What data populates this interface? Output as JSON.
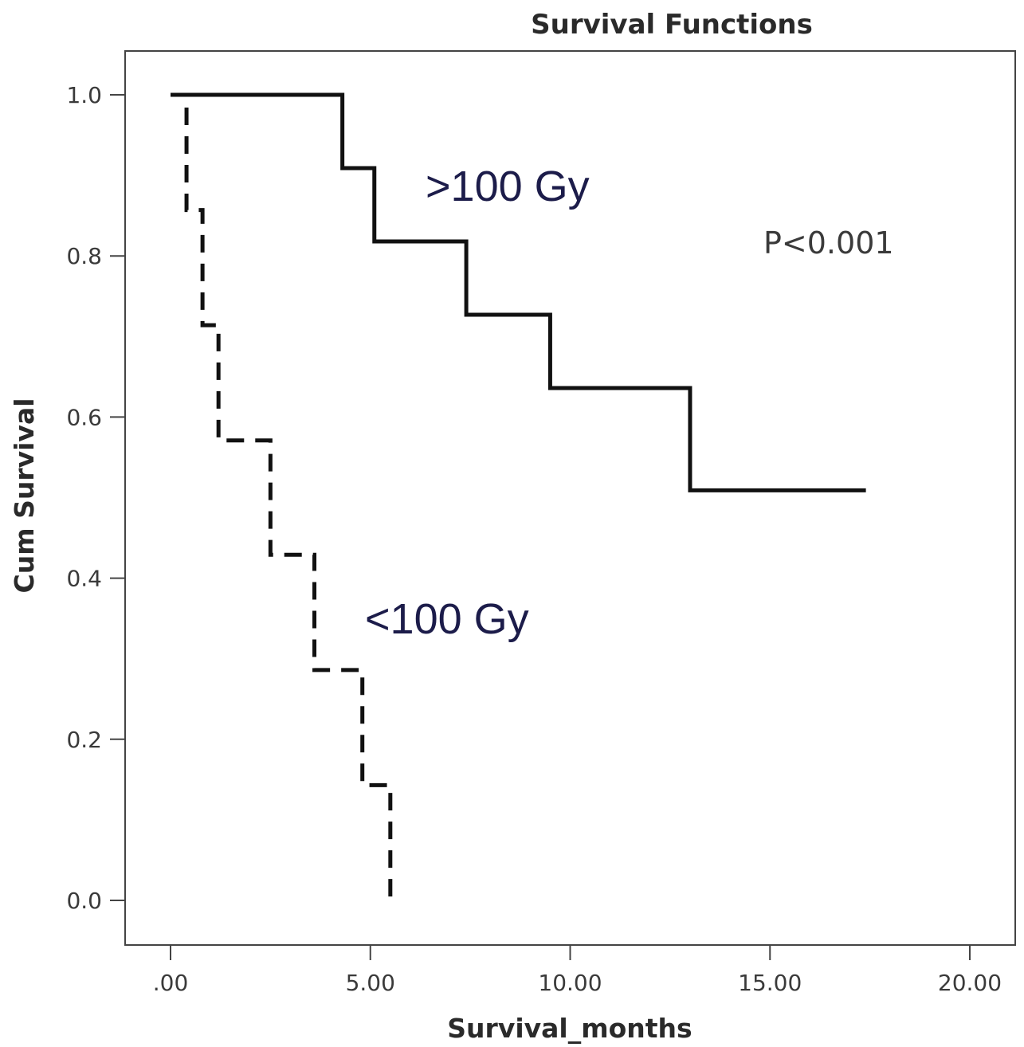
{
  "chart_data": {
    "type": "line",
    "title": "Survival Functions",
    "xlabel": "Survival_months",
    "ylabel": "Cum Survival",
    "xlim": [
      0,
      20
    ],
    "ylim": [
      0,
      1
    ],
    "x_ticks": [
      0,
      5,
      10,
      15,
      20
    ],
    "x_tick_labels": [
      ".00",
      "5.00",
      "10.00",
      "15.00",
      "20.00"
    ],
    "y_ticks": [
      0,
      0.2,
      0.4,
      0.6,
      0.8,
      1.0
    ],
    "y_tick_labels": [
      "0.0",
      "0.2",
      "0.4",
      "0.6",
      "0.8",
      "1.0"
    ],
    "grid": false,
    "step": true,
    "series": [
      {
        "name": ">100 Gy",
        "line_style": "solid",
        "color": "#111111",
        "x": [
          0,
          4.3,
          5.1,
          7.4,
          9.5,
          13.0,
          17.4
        ],
        "y": [
          1.0,
          0.909,
          0.818,
          0.727,
          0.636,
          0.509,
          0.509
        ]
      },
      {
        "name": "<100 Gy",
        "line_style": "dashed",
        "color": "#111111",
        "x": [
          0,
          0.4,
          0.8,
          1.2,
          2.5,
          3.6,
          4.8,
          5.5
        ],
        "y": [
          1.0,
          0.857,
          0.714,
          0.571,
          0.429,
          0.286,
          0.143,
          0.0
        ]
      }
    ],
    "annotations": [
      {
        "text": "P<0.001",
        "x": 16.5,
        "y": 0.81
      }
    ]
  }
}
